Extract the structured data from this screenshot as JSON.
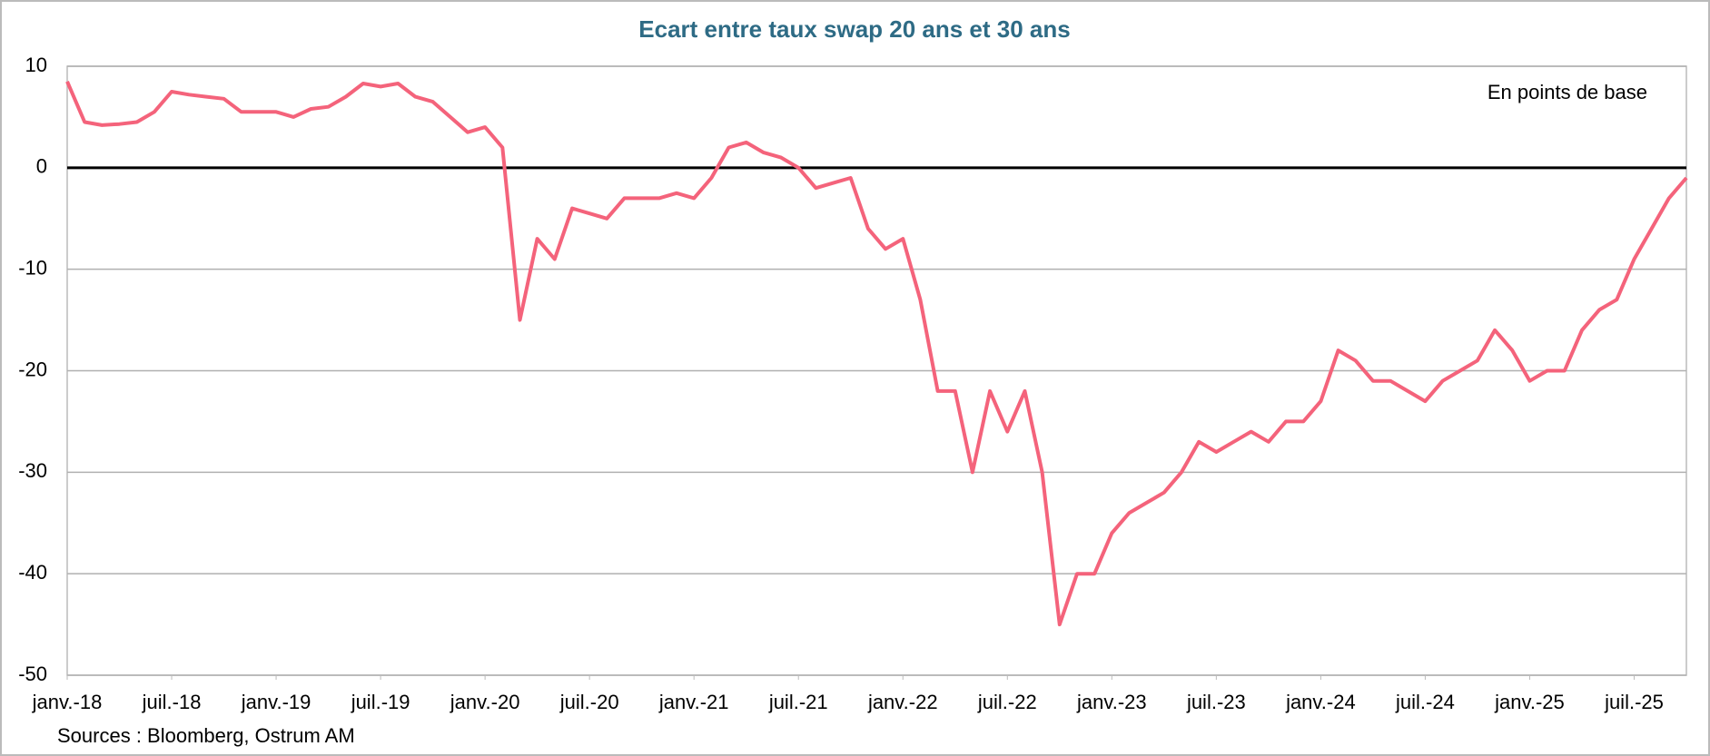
{
  "chart_data": {
    "type": "line",
    "title": "Ecart entre taux swap 20 ans et 30 ans",
    "annotation": "En points de base",
    "source": "Sources : Bloomberg, Ostrum AM",
    "color": "#f4637b",
    "x": [
      "2018-01",
      "2018-02",
      "2018-03",
      "2018-04",
      "2018-05",
      "2018-06",
      "2018-07",
      "2018-08",
      "2018-09",
      "2018-10",
      "2018-11",
      "2018-12",
      "2019-01",
      "2019-02",
      "2019-03",
      "2019-04",
      "2019-05",
      "2019-06",
      "2019-07",
      "2019-08",
      "2019-09",
      "2019-10",
      "2019-11",
      "2019-12",
      "2020-01",
      "2020-02",
      "2020-03",
      "2020-04",
      "2020-05",
      "2020-06",
      "2020-07",
      "2020-08",
      "2020-09",
      "2020-10",
      "2020-11",
      "2020-12",
      "2021-01",
      "2021-02",
      "2021-03",
      "2021-04",
      "2021-05",
      "2021-06",
      "2021-07",
      "2021-08",
      "2021-09",
      "2021-10",
      "2021-11",
      "2021-12",
      "2022-01",
      "2022-02",
      "2022-03",
      "2022-04",
      "2022-05",
      "2022-06",
      "2022-07",
      "2022-08",
      "2022-09",
      "2022-10",
      "2022-11",
      "2022-12",
      "2023-01",
      "2023-02",
      "2023-03",
      "2023-04",
      "2023-05",
      "2023-06",
      "2023-07",
      "2023-08",
      "2023-09",
      "2023-10",
      "2023-11",
      "2023-12",
      "2024-01",
      "2024-02",
      "2024-03",
      "2024-04",
      "2024-05",
      "2024-06",
      "2024-07",
      "2024-08",
      "2024-09",
      "2024-10",
      "2024-11",
      "2024-12",
      "2025-01",
      "2025-02",
      "2025-03",
      "2025-04",
      "2025-05",
      "2025-06",
      "2025-07",
      "2025-08",
      "2025-09",
      "2025-10"
    ],
    "values": [
      8.5,
      4.5,
      4.2,
      4.3,
      4.5,
      5.5,
      7.5,
      7.2,
      7.0,
      6.8,
      5.5,
      5.5,
      5.5,
      5.0,
      5.8,
      6.0,
      7.0,
      8.3,
      8.0,
      8.3,
      7.0,
      6.5,
      5.0,
      3.5,
      4.0,
      2.0,
      -15,
      -7,
      -9,
      -4,
      -4.5,
      -5,
      -3,
      -3,
      -3,
      -2.5,
      -3,
      -1,
      2,
      2.5,
      1.5,
      1.0,
      0,
      -2,
      -1.5,
      -1,
      -6,
      -8,
      -7,
      -13,
      -22,
      -22,
      -30,
      -22,
      -26,
      -22,
      -30,
      -45,
      -40,
      -40,
      -36,
      -34,
      -33,
      -32,
      -30,
      -27,
      -28,
      -27,
      -26,
      -27,
      -25,
      -25,
      -23,
      -18,
      -19,
      -21,
      -21,
      -22,
      -23,
      -21,
      -20,
      -19,
      -16,
      -18,
      -21,
      -20,
      -20,
      -16,
      -14,
      -13,
      -9,
      -6,
      -3,
      -1
    ],
    "xlim": [
      "2018-01",
      "2025-10"
    ],
    "xticks": [
      {
        "value": "2018-01",
        "label": "janv.-18"
      },
      {
        "value": "2018-07",
        "label": "juil.-18"
      },
      {
        "value": "2019-01",
        "label": "janv.-19"
      },
      {
        "value": "2019-07",
        "label": "juil.-19"
      },
      {
        "value": "2020-01",
        "label": "janv.-20"
      },
      {
        "value": "2020-07",
        "label": "juil.-20"
      },
      {
        "value": "2021-01",
        "label": "janv.-21"
      },
      {
        "value": "2021-07",
        "label": "juil.-21"
      },
      {
        "value": "2022-01",
        "label": "janv.-22"
      },
      {
        "value": "2022-07",
        "label": "juil.-22"
      },
      {
        "value": "2023-01",
        "label": "janv.-23"
      },
      {
        "value": "2023-07",
        "label": "juil.-23"
      },
      {
        "value": "2024-01",
        "label": "janv.-24"
      },
      {
        "value": "2024-07",
        "label": "juil.-24"
      },
      {
        "value": "2025-01",
        "label": "janv.-25"
      },
      {
        "value": "2025-07",
        "label": "juil.-25"
      }
    ],
    "ylim": [
      -50,
      10
    ],
    "yticks": [
      -50,
      -40,
      -30,
      -20,
      -10,
      0,
      10
    ],
    "grid": true
  }
}
